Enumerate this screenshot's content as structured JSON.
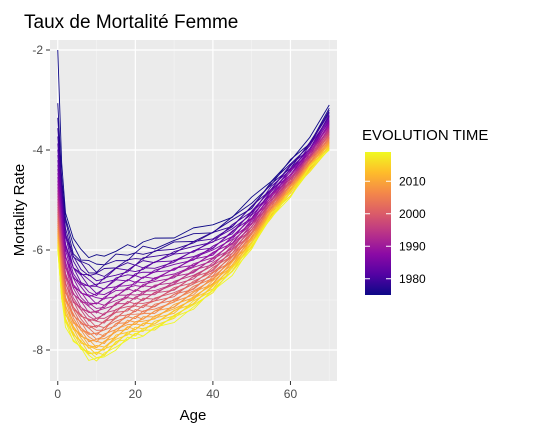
{
  "chart_data": {
    "type": "line",
    "title": "Taux de Mortalité Femme",
    "xlabel": "Age",
    "ylabel": "Mortality Rate",
    "xlim": [
      -2,
      72
    ],
    "ylim": [
      -8.62,
      -1.8
    ],
    "x_ticks": [
      0,
      20,
      40,
      60
    ],
    "y_ticks": [
      -2,
      -4,
      -6,
      -8
    ],
    "grid": true,
    "legend": {
      "title": "EVOLUTION TIME",
      "position": "right",
      "type": "colorbar",
      "range": [
        1975,
        2019
      ],
      "ticks": [
        1980,
        1990,
        2000,
        2010
      ],
      "palette": [
        "#0D0887",
        "#5302A3",
        "#8B0AA5",
        "#B83289",
        "#DB5C68",
        "#F48849",
        "#FEBC2A",
        "#F0F921"
      ]
    },
    "series_model": {
      "description_free": true,
      "years": [
        1975,
        1976,
        1977,
        1978,
        1979,
        1980,
        1981,
        1982,
        1983,
        1984,
        1985,
        1986,
        1987,
        1988,
        1989,
        1990,
        1991,
        1992,
        1993,
        1994,
        1995,
        1996,
        1997,
        1998,
        1999,
        2000,
        2001,
        2002,
        2003,
        2004,
        2005,
        2006,
        2007,
        2008,
        2009,
        2010,
        2011,
        2012,
        2013,
        2014,
        2015,
        2016,
        2017,
        2018,
        2019
      ],
      "age_points": [
        0,
        1,
        2,
        4,
        6,
        8,
        10,
        12,
        15,
        18,
        20,
        22,
        25,
        30,
        35,
        40,
        45,
        50,
        55,
        60,
        65,
        70
      ],
      "first_year_profile": [
        -2.0,
        -4.3,
        -5.2,
        -5.8,
        -6.0,
        -6.1,
        -6.15,
        -6.1,
        -6.0,
        -5.95,
        -5.9,
        -5.85,
        -5.8,
        -5.7,
        -5.6,
        -5.5,
        -5.3,
        -5.0,
        -4.6,
        -4.2,
        -3.8,
        -3.1
      ],
      "last_year_profile": [
        -6.0,
        -7.0,
        -7.5,
        -7.8,
        -8.0,
        -8.15,
        -8.2,
        -8.15,
        -7.95,
        -7.8,
        -7.75,
        -7.7,
        -7.6,
        -7.4,
        -7.15,
        -6.85,
        -6.45,
        -5.95,
        -5.35,
        -4.9,
        -4.4,
        -4.0
      ]
    }
  }
}
